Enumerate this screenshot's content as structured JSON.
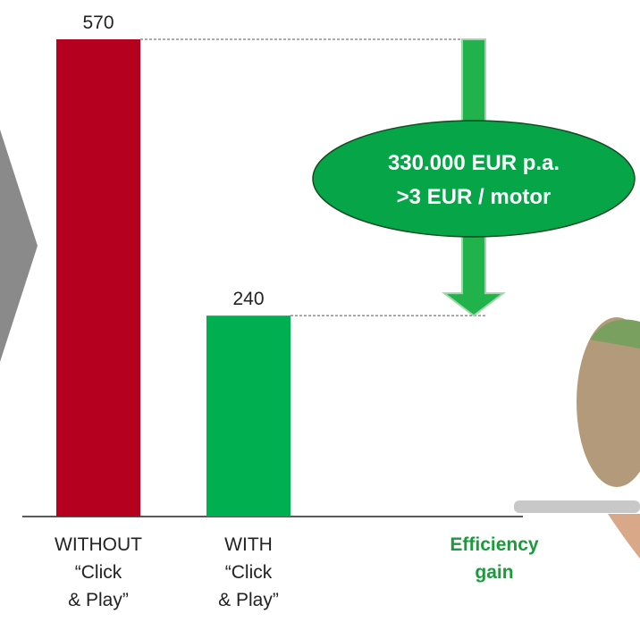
{
  "chart_data": {
    "type": "bar",
    "categories": [
      "WITHOUT\n“Click\n& Play”",
      "WITH\n“Click\n& Play”"
    ],
    "values": [
      570,
      240
    ],
    "colors": [
      "#b5001f",
      "#00b050"
    ],
    "annotations": [
      "330.000 EUR p.a.",
      ">3 EUR / motor",
      "Efficiency\ngain"
    ]
  }
}
